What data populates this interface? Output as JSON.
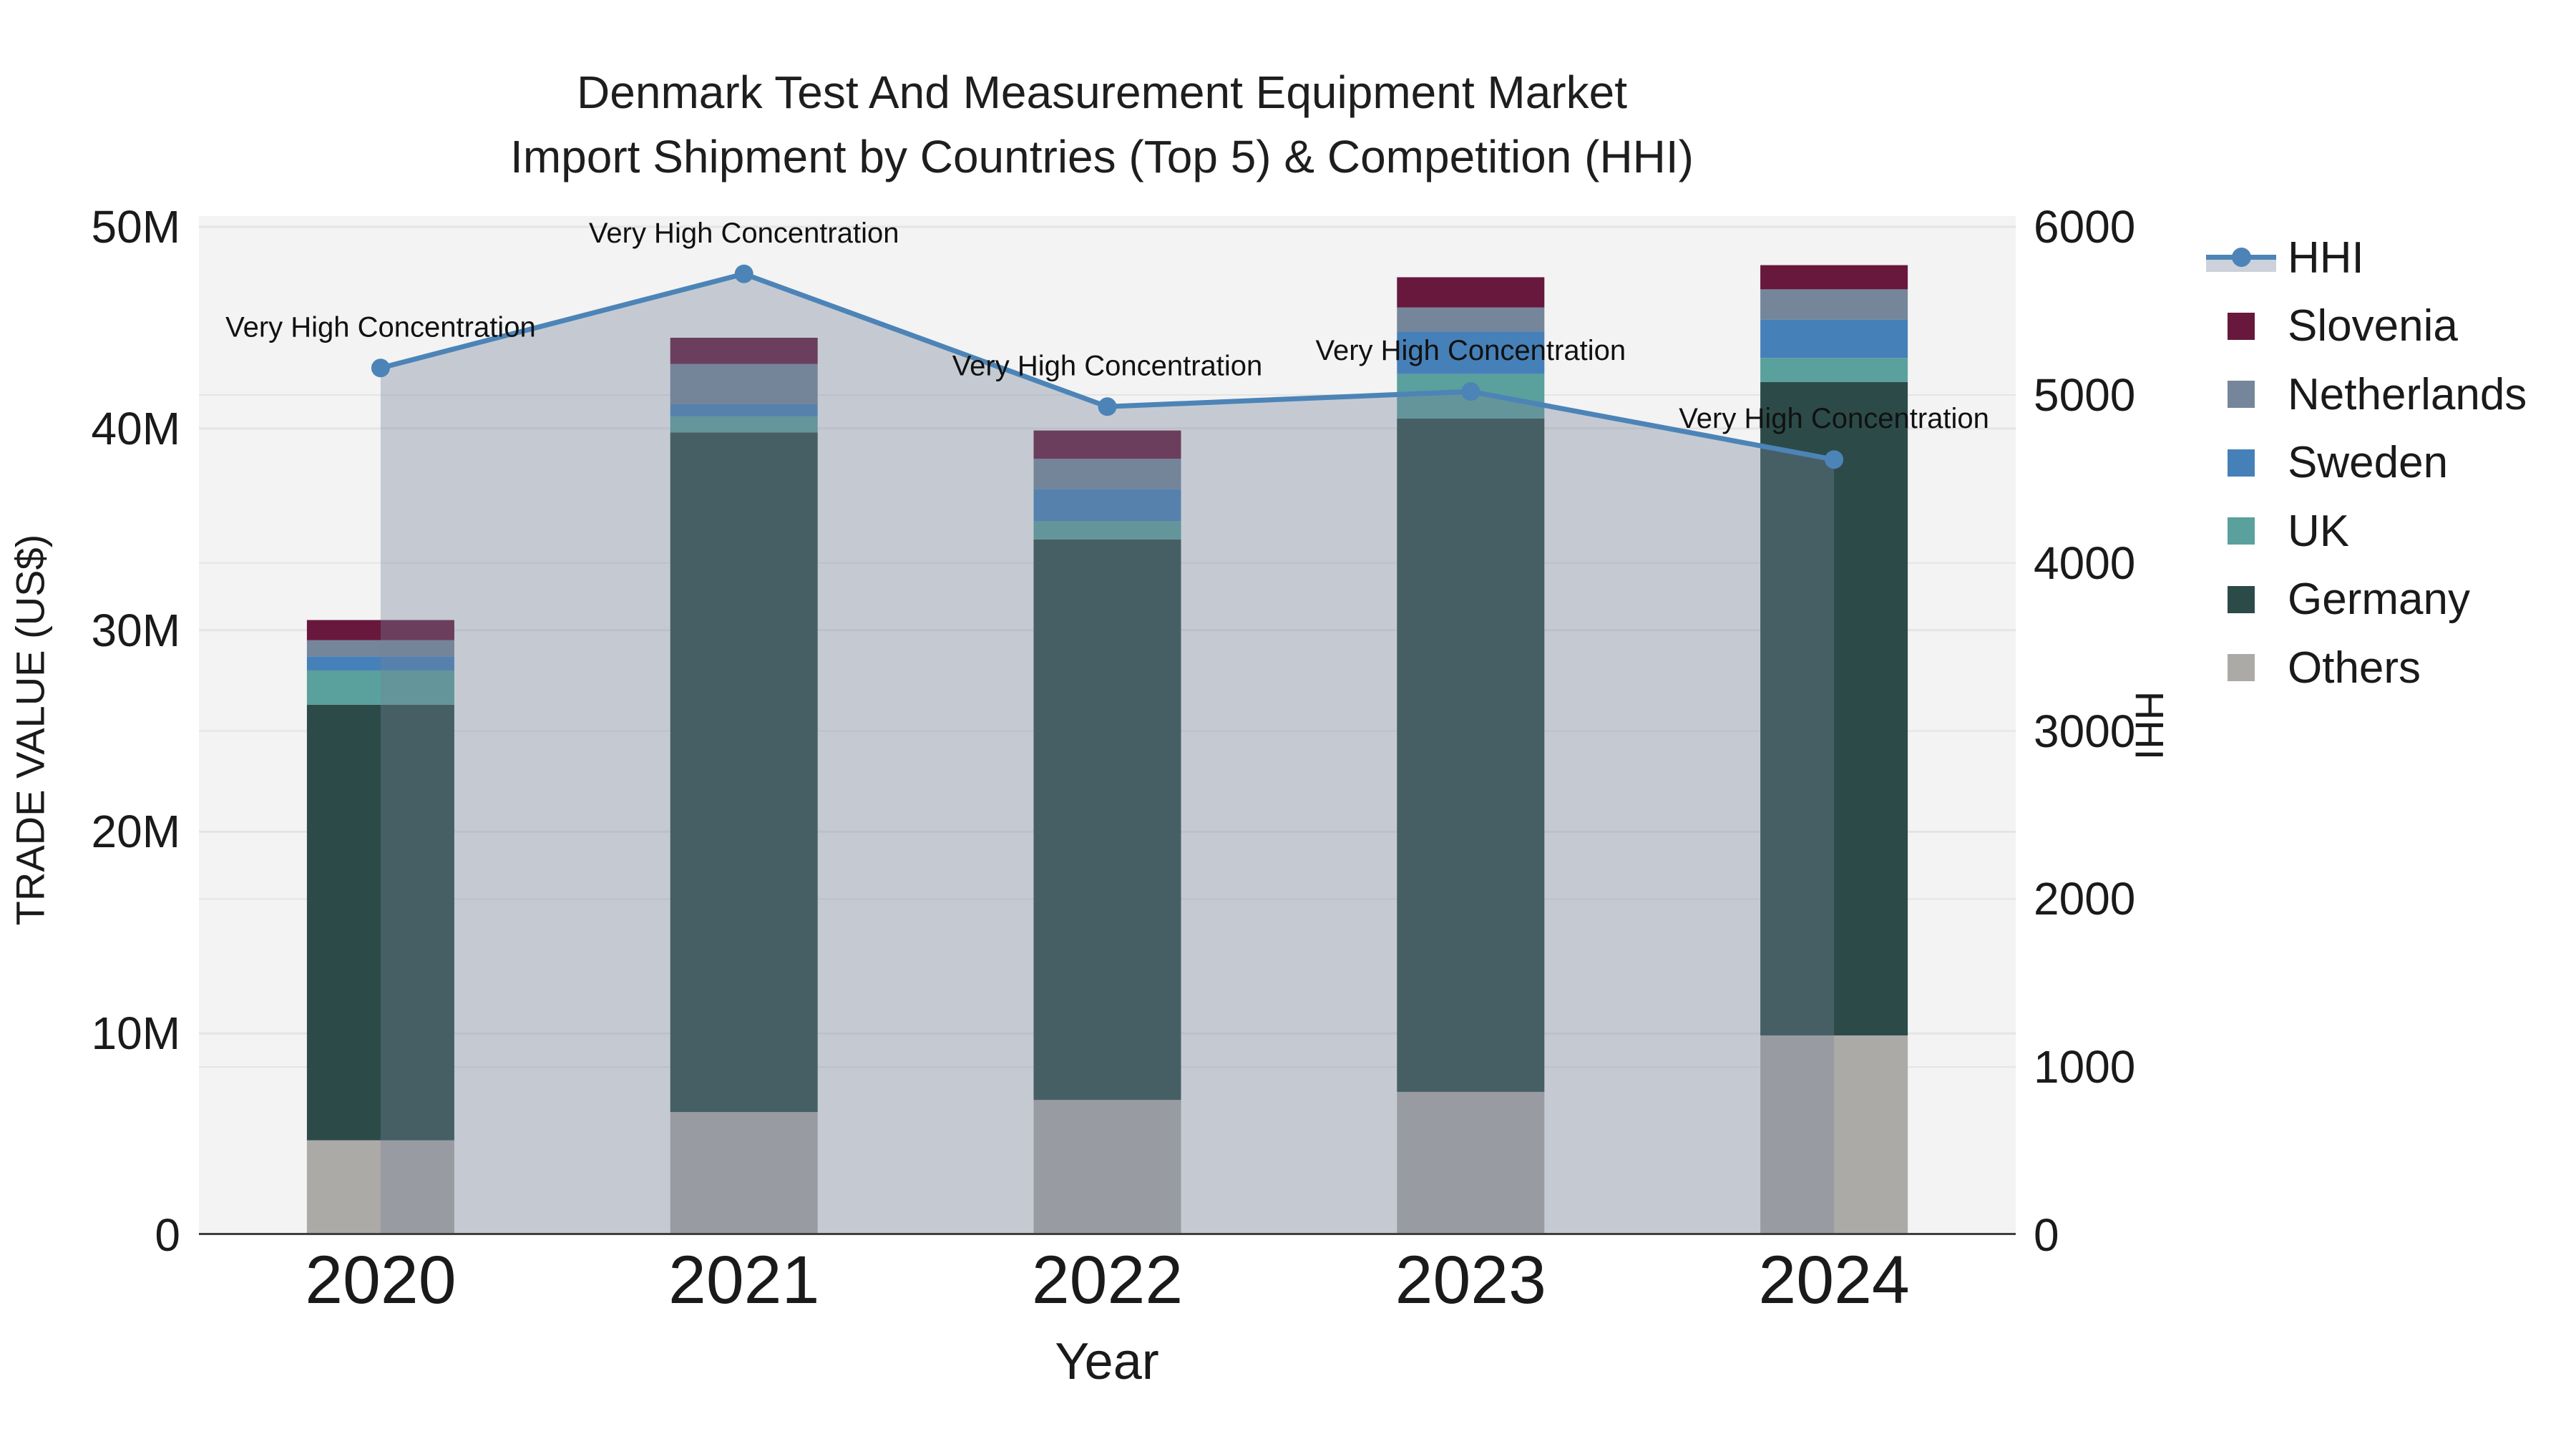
{
  "title": {
    "line1": "Denmark Test And Measurement Equipment Market",
    "line2": "Import Shipment by Countries (Top 5) & Competition (HHI)"
  },
  "axes": {
    "left": {
      "title": "TRADE VALUE (US$)",
      "ticks": [
        {
          "label": "0",
          "value": 0
        },
        {
          "label": "10M",
          "value": 10
        },
        {
          "label": "20M",
          "value": 20
        },
        {
          "label": "30M",
          "value": 30
        },
        {
          "label": "40M",
          "value": 40
        },
        {
          "label": "50M",
          "value": 50
        }
      ]
    },
    "right": {
      "title": "HHI",
      "ticks": [
        {
          "label": "0",
          "value": 0
        },
        {
          "label": "1000",
          "value": 1000
        },
        {
          "label": "2000",
          "value": 2000
        },
        {
          "label": "3000",
          "value": 3000
        },
        {
          "label": "4000",
          "value": 4000
        },
        {
          "label": "5000",
          "value": 5000
        },
        {
          "label": "6000",
          "value": 6000
        }
      ]
    },
    "x": {
      "title": "Year",
      "ticks": [
        "2020",
        "2021",
        "2022",
        "2023",
        "2024"
      ]
    }
  },
  "legend": {
    "items": [
      {
        "label": "HHI",
        "type": "line",
        "color": "#4c84b7"
      },
      {
        "label": "Slovenia",
        "type": "box",
        "color": "#67183c"
      },
      {
        "label": "Netherlands",
        "type": "box",
        "color": "#75869a"
      },
      {
        "label": "Sweden",
        "type": "box",
        "color": "#4680b8"
      },
      {
        "label": "UK",
        "type": "box",
        "color": "#5aa09d"
      },
      {
        "label": "Germany",
        "type": "box",
        "color": "#2c4b48"
      },
      {
        "label": "Others",
        "type": "box",
        "color": "#acaaa7"
      }
    ]
  },
  "chart_data": {
    "type": "bar+line",
    "bar_mode": "stacked",
    "categories": [
      "2020",
      "2021",
      "2022",
      "2023",
      "2024"
    ],
    "bar_value_unit": "million US$",
    "series": [
      {
        "name": "Others",
        "color": "#acaaa7",
        "values": [
          4.7,
          6.1,
          6.7,
          7.1,
          9.9
        ]
      },
      {
        "name": "Germany",
        "color": "#2c4b48",
        "values": [
          21.6,
          33.7,
          27.8,
          33.4,
          32.4
        ]
      },
      {
        "name": "UK",
        "color": "#5aa09d",
        "values": [
          1.7,
          0.8,
          0.9,
          2.2,
          1.2
        ]
      },
      {
        "name": "Sweden",
        "color": "#4680b8",
        "values": [
          0.7,
          0.6,
          1.6,
          2.1,
          1.9
        ]
      },
      {
        "name": "Netherlands",
        "color": "#75869a",
        "values": [
          0.8,
          2.0,
          1.5,
          1.2,
          1.5
        ]
      },
      {
        "name": "Slovenia",
        "color": "#67183c",
        "values": [
          1.0,
          1.3,
          1.4,
          1.5,
          1.2
        ]
      }
    ],
    "bar_totals": [
      30.5,
      44.5,
      39.9,
      47.5,
      48.1
    ],
    "line": {
      "name": "HHI",
      "color": "#4c84b7",
      "fill_color": "rgba(116,130,152,0.36)",
      "values": [
        5160,
        5720,
        4930,
        5020,
        4615
      ],
      "annotations": [
        "Very High Concentration",
        "Very High Concentration",
        "Very High Concentration",
        "Very High Concentration",
        "Very High Concentration"
      ]
    },
    "ylim_left": [
      0,
      50
    ],
    "ylim_right": [
      0,
      6000
    ],
    "grid": true,
    "grid_color": "#e4e4e4",
    "plot_bg": "#f3f3f3",
    "baseline_color": "#3f3f3f",
    "legend_position": "right"
  }
}
